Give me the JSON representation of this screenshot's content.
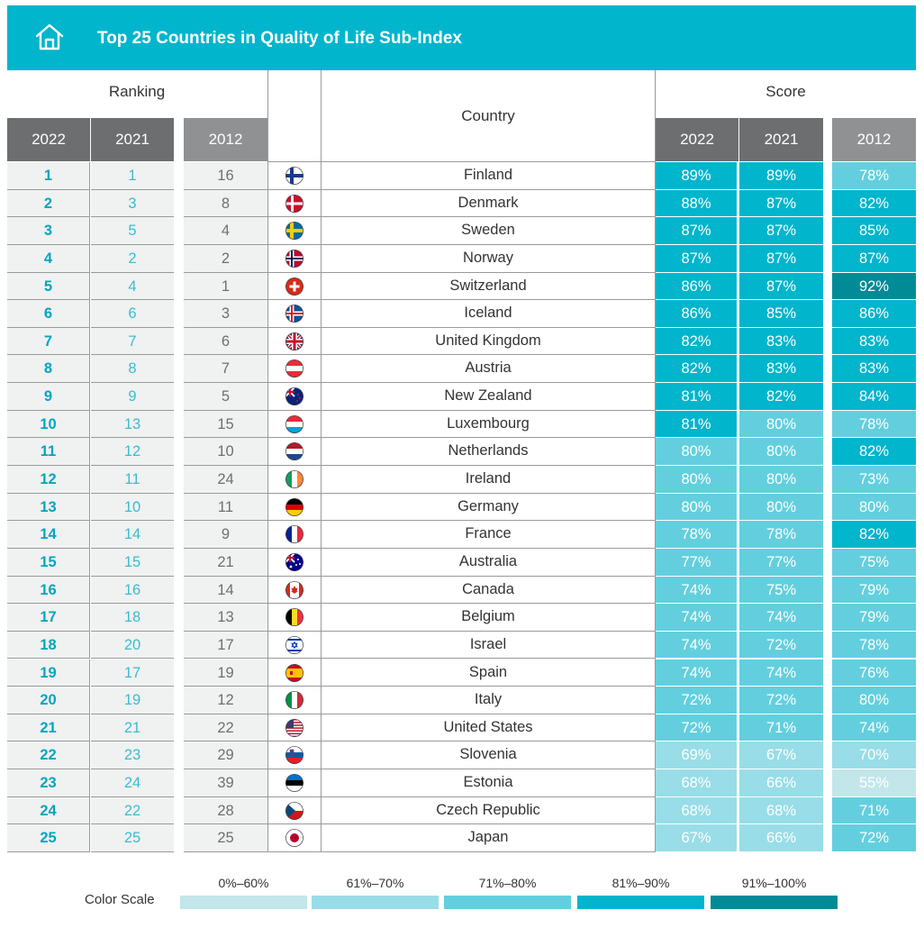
{
  "header": {
    "title": "Top 25 Countries in Quality of Life Sub-Index",
    "icon": "home-icon"
  },
  "groups": {
    "ranking": "Ranking",
    "country": "Country",
    "score": "Score"
  },
  "columns": {
    "rank_2022": "2022",
    "rank_2021": "2021",
    "rank_2012": "2012",
    "score_2022": "2022",
    "score_2021": "2021",
    "score_2012": "2012"
  },
  "colors": {
    "header": "#00b5cc",
    "s0_60": "#c2e6ea",
    "s61_70": "#98dde7",
    "s71_80": "#63cfde",
    "s81_90": "#00b5cc",
    "s91_100": "#008b96"
  },
  "rows": [
    {
      "r22": "1",
      "r21": "1",
      "r12": "16",
      "country": "Finland",
      "s22": "89%",
      "s21": "89%",
      "s12": "78%",
      "flag": "finland"
    },
    {
      "r22": "2",
      "r21": "3",
      "r12": "8",
      "country": "Denmark",
      "s22": "88%",
      "s21": "87%",
      "s12": "82%",
      "flag": "denmark"
    },
    {
      "r22": "3",
      "r21": "5",
      "r12": "4",
      "country": "Sweden",
      "s22": "87%",
      "s21": "87%",
      "s12": "85%",
      "flag": "sweden"
    },
    {
      "r22": "4",
      "r21": "2",
      "r12": "2",
      "country": "Norway",
      "s22": "87%",
      "s21": "87%",
      "s12": "87%",
      "flag": "norway"
    },
    {
      "r22": "5",
      "r21": "4",
      "r12": "1",
      "country": "Switzerland",
      "s22": "86%",
      "s21": "87%",
      "s12": "92%",
      "flag": "switzerland"
    },
    {
      "r22": "6",
      "r21": "6",
      "r12": "3",
      "country": "Iceland",
      "s22": "86%",
      "s21": "85%",
      "s12": "86%",
      "flag": "iceland"
    },
    {
      "r22": "7",
      "r21": "7",
      "r12": "6",
      "country": "United Kingdom",
      "s22": "82%",
      "s21": "83%",
      "s12": "83%",
      "flag": "uk"
    },
    {
      "r22": "8",
      "r21": "8",
      "r12": "7",
      "country": "Austria",
      "s22": "82%",
      "s21": "83%",
      "s12": "83%",
      "flag": "austria"
    },
    {
      "r22": "9",
      "r21": "9",
      "r12": "5",
      "country": "New Zealand",
      "s22": "81%",
      "s21": "82%",
      "s12": "84%",
      "flag": "newzealand"
    },
    {
      "r22": "10",
      "r21": "13",
      "r12": "15",
      "country": "Luxembourg",
      "s22": "81%",
      "s21": "80%",
      "s12": "78%",
      "flag": "luxembourg"
    },
    {
      "r22": "11",
      "r21": "12",
      "r12": "10",
      "country": "Netherlands",
      "s22": "80%",
      "s21": "80%",
      "s12": "82%",
      "flag": "netherlands"
    },
    {
      "r22": "12",
      "r21": "11",
      "r12": "24",
      "country": "Ireland",
      "s22": "80%",
      "s21": "80%",
      "s12": "73%",
      "flag": "ireland"
    },
    {
      "r22": "13",
      "r21": "10",
      "r12": "11",
      "country": "Germany",
      "s22": "80%",
      "s21": "80%",
      "s12": "80%",
      "flag": "germany"
    },
    {
      "r22": "14",
      "r21": "14",
      "r12": "9",
      "country": "France",
      "s22": "78%",
      "s21": "78%",
      "s12": "82%",
      "flag": "france"
    },
    {
      "r22": "15",
      "r21": "15",
      "r12": "21",
      "country": "Australia",
      "s22": "77%",
      "s21": "77%",
      "s12": "75%",
      "flag": "australia"
    },
    {
      "r22": "16",
      "r21": "16",
      "r12": "14",
      "country": "Canada",
      "s22": "74%",
      "s21": "75%",
      "s12": "79%",
      "flag": "canada"
    },
    {
      "r22": "17",
      "r21": "18",
      "r12": "13",
      "country": "Belgium",
      "s22": "74%",
      "s21": "74%",
      "s12": "79%",
      "flag": "belgium"
    },
    {
      "r22": "18",
      "r21": "20",
      "r12": "17",
      "country": "Israel",
      "s22": "74%",
      "s21": "72%",
      "s12": "78%",
      "flag": "israel"
    },
    {
      "r22": "19",
      "r21": "17",
      "r12": "19",
      "country": "Spain",
      "s22": "74%",
      "s21": "74%",
      "s12": "76%",
      "flag": "spain"
    },
    {
      "r22": "20",
      "r21": "19",
      "r12": "12",
      "country": "Italy",
      "s22": "72%",
      "s21": "72%",
      "s12": "80%",
      "flag": "italy"
    },
    {
      "r22": "21",
      "r21": "21",
      "r12": "22",
      "country": "United States",
      "s22": "72%",
      "s21": "71%",
      "s12": "74%",
      "flag": "usa"
    },
    {
      "r22": "22",
      "r21": "23",
      "r12": "29",
      "country": "Slovenia",
      "s22": "69%",
      "s21": "67%",
      "s12": "70%",
      "flag": "slovenia"
    },
    {
      "r22": "23",
      "r21": "24",
      "r12": "39",
      "country": "Estonia",
      "s22": "68%",
      "s21": "66%",
      "s12": "55%",
      "flag": "estonia"
    },
    {
      "r22": "24",
      "r21": "22",
      "r12": "28",
      "country": "Czech Republic",
      "s22": "68%",
      "s21": "68%",
      "s12": "71%",
      "flag": "czech"
    },
    {
      "r22": "25",
      "r21": "25",
      "r12": "25",
      "country": "Japan",
      "s22": "67%",
      "s21": "66%",
      "s12": "72%",
      "flag": "japan"
    }
  ],
  "legend": {
    "title": "Color Scale",
    "items": [
      {
        "label": "0%–60%",
        "color": "#c2e6ea"
      },
      {
        "label": "61%–70%",
        "color": "#98dde7"
      },
      {
        "label": "71%–80%",
        "color": "#63cfde"
      },
      {
        "label": "81%–90%",
        "color": "#00b5cc"
      },
      {
        "label": "91%–100%",
        "color": "#008b96"
      }
    ]
  }
}
